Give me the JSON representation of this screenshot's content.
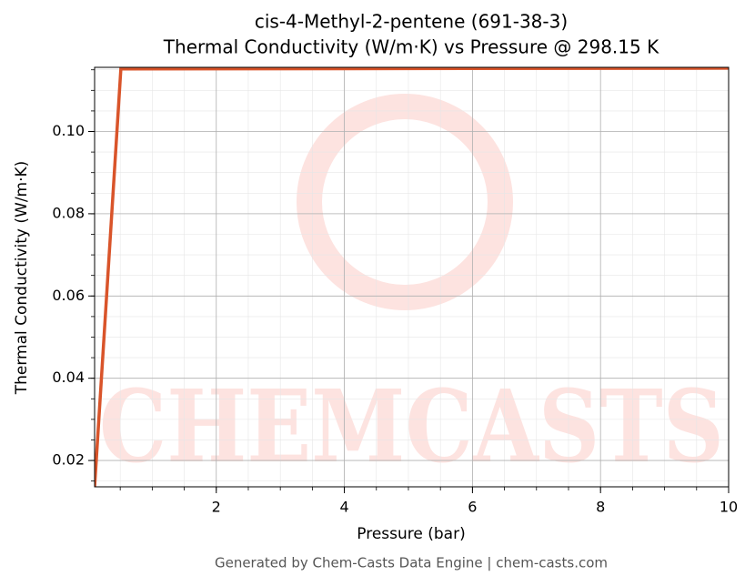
{
  "chart_data": {
    "type": "line",
    "title": "cis-4-Methyl-2-pentene (691-38-3)",
    "subtitle": "Thermal Conductivity (W/m·K) vs Pressure @ 298.15 K",
    "x_label": "Pressure (bar)",
    "y_label": "Thermal Conductivity (W/m·K)",
    "watermark": "CHEMCASTS",
    "footer": "Generated by Chem-Casts Data Engine | chem-casts.com",
    "x": [
      0.1,
      0.51,
      10
    ],
    "series": [
      {
        "name": "Thermal Conductivity",
        "color": "#d9542a",
        "values": [
          0.0136,
          0.1152,
          0.1154
        ]
      }
    ],
    "xlim": [
      0.1,
      10
    ],
    "xticks": [
      2,
      4,
      6,
      8,
      10
    ],
    "ylim": [
      0.0136,
      0.1156
    ],
    "yticks": [
      0.02,
      0.04,
      0.06,
      0.08,
      {
        "value": 0.1,
        "label": "0.10"
      }
    ],
    "grid": true,
    "minor_grid": true
  }
}
